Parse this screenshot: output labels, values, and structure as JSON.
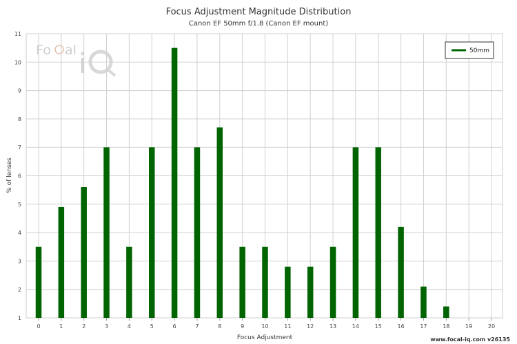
{
  "chart_data": {
    "type": "bar",
    "title": "Focus Adjustment Magnitude Distribution",
    "subtitle": "Canon EF 50mm f/1.8 (Canon EF mount)",
    "xlabel": "Focus Adjustment",
    "ylabel": "% of lenses",
    "categories": [
      "0",
      "1",
      "2",
      "3",
      "4",
      "5",
      "6",
      "7",
      "8",
      "9",
      "10",
      "11",
      "12",
      "13",
      "14",
      "15",
      "16",
      "17",
      "18",
      "19",
      "20"
    ],
    "series": [
      {
        "name": "50mm",
        "color": "#006400",
        "values": [
          3.5,
          4.9,
          5.6,
          7.0,
          3.5,
          7.0,
          10.5,
          7.0,
          7.7,
          3.5,
          3.5,
          2.8,
          2.8,
          3.5,
          7.0,
          7.0,
          4.2,
          2.1,
          1.4,
          null,
          null
        ]
      }
    ],
    "ylim": [
      1,
      11
    ],
    "yticks": [
      1,
      2,
      3,
      4,
      5,
      6,
      7,
      8,
      9,
      10,
      11
    ],
    "grid": true,
    "legend_position": "top-right"
  },
  "credit": "www.focal-iq.com  v26135",
  "logo": {
    "text": "FoCal iQ",
    "color": "#c9c9c9"
  }
}
